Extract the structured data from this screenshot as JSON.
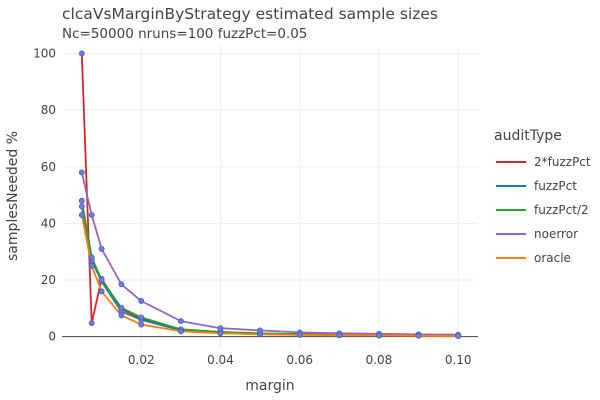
{
  "chart_data": {
    "type": "line",
    "title": "clcaVsMarginByStrategy estimated sample sizes",
    "subtitle": "Nc=50000 nruns=100 fuzzPct=0.05",
    "xlabel": "margin",
    "ylabel": "samplesNeeded %",
    "xlim": [
      0.0,
      0.105
    ],
    "ylim": [
      -4,
      103
    ],
    "x_ticks": [
      0.02,
      0.04,
      0.06,
      0.08,
      0.1
    ],
    "x_tick_labels": [
      "0.02",
      "0.04",
      "0.06",
      "0.08",
      "0.10"
    ],
    "y_ticks": [
      0,
      20,
      40,
      60,
      80,
      100
    ],
    "y_tick_labels": [
      "0",
      "20",
      "40",
      "60",
      "80",
      "100"
    ],
    "grid": true,
    "legend_position": "right",
    "legend_title": "auditType",
    "marker_color": "#6b7fd7",
    "series": [
      {
        "name": "2*fuzzPct",
        "color": "#d62728",
        "x": [
          0.005,
          0.0075,
          0.01,
          0.015,
          0.02,
          0.03,
          0.04,
          0.05,
          0.06,
          0.07,
          0.08,
          0.09,
          0.1
        ],
        "y": [
          100,
          4.8,
          20.4,
          9.8,
          6.4,
          2.5,
          1.6,
          1.1,
          0.9,
          0.7,
          0.6,
          0.5,
          0.4
        ]
      },
      {
        "name": "fuzzPct",
        "color": "#1f77b4",
        "x": [
          0.005,
          0.0075,
          0.01,
          0.015,
          0.02,
          0.03,
          0.04,
          0.05,
          0.06,
          0.07,
          0.08,
          0.09,
          0.1
        ],
        "y": [
          46,
          27,
          19.5,
          8.9,
          6.0,
          2.2,
          1.5,
          1.0,
          0.8,
          0.6,
          0.5,
          0.4,
          0.3
        ]
      },
      {
        "name": "fuzzPct/2",
        "color": "#2ca02c",
        "x": [
          0.005,
          0.0075,
          0.01,
          0.015,
          0.02,
          0.03,
          0.04,
          0.05,
          0.06,
          0.07,
          0.08,
          0.09,
          0.1
        ],
        "y": [
          48,
          28,
          20,
          10.2,
          6.8,
          2.6,
          1.7,
          1.2,
          0.9,
          0.7,
          0.6,
          0.5,
          0.4
        ]
      },
      {
        "name": "noerror",
        "color": "#9467bd",
        "x": [
          0.005,
          0.0075,
          0.01,
          0.015,
          0.02,
          0.03,
          0.04,
          0.05,
          0.06,
          0.07,
          0.08,
          0.09,
          0.1
        ],
        "y": [
          58,
          43,
          31,
          18.5,
          12.6,
          5.5,
          3.0,
          2.2,
          1.5,
          1.2,
          1.0,
          0.8,
          0.7
        ]
      },
      {
        "name": "oracle",
        "color": "#ff7f0e",
        "x": [
          0.005,
          0.0075,
          0.01,
          0.015,
          0.02,
          0.03,
          0.04,
          0.05,
          0.06,
          0.07,
          0.08,
          0.09,
          0.1
        ],
        "y": [
          43,
          25,
          16,
          7.5,
          4.3,
          1.9,
          1.2,
          0.8,
          0.6,
          0.5,
          0.4,
          0.3,
          0.2
        ]
      }
    ]
  }
}
